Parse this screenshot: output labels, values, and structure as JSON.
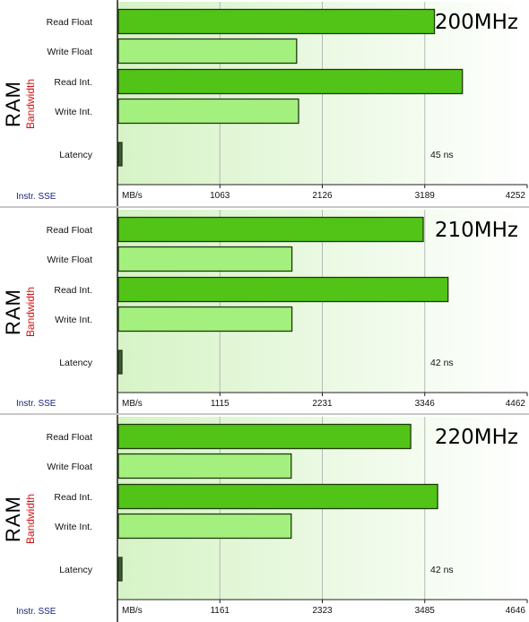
{
  "chart_data": [
    {
      "type": "bar",
      "title": "200MHz",
      "y_label_main": "RAM",
      "y_label_sub": "Bandwidth",
      "categories": [
        "Read Float",
        "Write Float",
        "Read Int.",
        "Write Int.",
        "Latency"
      ],
      "values": [
        3280,
        1850,
        3570,
        1870,
        45
      ],
      "unit": "MB/s",
      "latency_label": "45 ns",
      "x_ticks": [
        "1063",
        "2126",
        "3189",
        "4252"
      ],
      "xlim": [
        0,
        4252
      ],
      "instr": "Instr. SSE",
      "grid": true
    },
    {
      "type": "bar",
      "title": "210MHz",
      "y_label_main": "RAM",
      "y_label_sub": "Bandwidth",
      "categories": [
        "Read Float",
        "Write Float",
        "Read Int.",
        "Write Int.",
        "Latency"
      ],
      "values": [
        3320,
        1890,
        3590,
        1890,
        42
      ],
      "unit": "MB/s",
      "latency_label": "42 ns",
      "x_ticks": [
        "1115",
        "2231",
        "3346",
        "4462"
      ],
      "xlim": [
        0,
        4462
      ],
      "instr": "Instr. SSE",
      "grid": true
    },
    {
      "type": "bar",
      "title": "220MHz",
      "y_label_main": "RAM",
      "y_label_sub": "Bandwidth",
      "categories": [
        "Read Float",
        "Write Float",
        "Read Int.",
        "Write Int.",
        "Latency"
      ],
      "values": [
        3315,
        1960,
        3620,
        1960,
        42
      ],
      "unit": "MB/s",
      "latency_label": "42 ns",
      "x_ticks": [
        "1161",
        "2323",
        "3485",
        "4646"
      ],
      "xlim": [
        0,
        4646
      ],
      "instr": "Instr. SSE",
      "grid": true
    }
  ],
  "colors": {
    "dark_bar": "#52c418",
    "light_bar": "#a4f07e",
    "bar_border": "#1e3a0c",
    "grid": "#b8b8b8",
    "axis": "#202020",
    "plot_bg": "#eefbe8",
    "ylabel_sub": "#d01010",
    "instr_text": "#1a237e"
  }
}
